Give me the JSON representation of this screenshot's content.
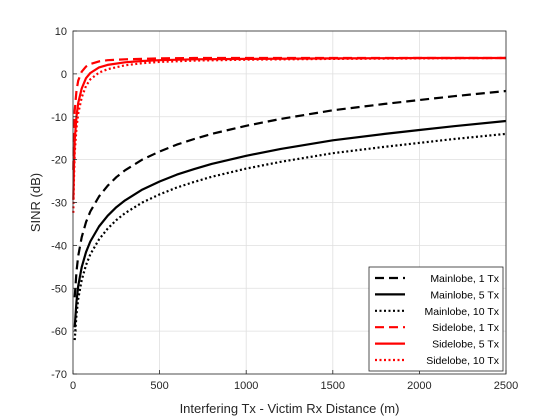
{
  "chart_data": {
    "type": "line",
    "title": "",
    "xlabel": "Interfering Tx - Victim Rx Distance (m)",
    "ylabel": "SINR (dB)",
    "xlim": [
      0,
      2500
    ],
    "ylim": [
      -70,
      10
    ],
    "xticks": [
      0,
      500,
      1000,
      1500,
      2000,
      2500
    ],
    "yticks": [
      -70,
      -60,
      -50,
      -40,
      -30,
      -20,
      -10,
      0,
      10
    ],
    "grid": true,
    "legend_position": "bottom-right",
    "series": [
      {
        "name": "Mainlobe, 1 Tx",
        "color": "#000000",
        "style": "dashed",
        "x": [
          10,
          20,
          30,
          50,
          75,
          100,
          150,
          200,
          250,
          300,
          400,
          500,
          600,
          700,
          800,
          1000,
          1200,
          1500,
          1800,
          2000,
          2200,
          2500
        ],
        "y": [
          -52.1,
          -46.1,
          -42.5,
          -38.1,
          -34.6,
          -32.1,
          -28.6,
          -26.1,
          -24.1,
          -22.5,
          -20.0,
          -18.1,
          -16.5,
          -15.2,
          -14.0,
          -12.1,
          -10.5,
          -8.5,
          -7.0,
          -6.1,
          -5.2,
          -4.0
        ]
      },
      {
        "name": "Mainlobe, 5 Tx",
        "color": "#000000",
        "style": "solid",
        "x": [
          10,
          20,
          30,
          50,
          75,
          100,
          150,
          200,
          250,
          300,
          400,
          500,
          600,
          700,
          800,
          1000,
          1200,
          1500,
          1800,
          2000,
          2200,
          2500
        ],
        "y": [
          -59.1,
          -53.1,
          -49.5,
          -45.1,
          -41.6,
          -39.1,
          -35.6,
          -33.1,
          -31.1,
          -29.5,
          -27.0,
          -25.1,
          -23.5,
          -22.2,
          -21.0,
          -19.1,
          -17.5,
          -15.5,
          -14.0,
          -13.1,
          -12.2,
          -11.0
        ]
      },
      {
        "name": "Mainlobe, 10 Tx",
        "color": "#000000",
        "style": "dotted",
        "x": [
          10,
          20,
          30,
          50,
          75,
          100,
          150,
          200,
          250,
          300,
          400,
          500,
          600,
          700,
          800,
          1000,
          1200,
          1500,
          1800,
          2000,
          2200,
          2500
        ],
        "y": [
          -62.1,
          -56.1,
          -52.5,
          -48.1,
          -44.6,
          -42.1,
          -38.6,
          -36.1,
          -34.1,
          -32.5,
          -30.0,
          -28.1,
          -26.5,
          -25.2,
          -24.0,
          -22.1,
          -20.5,
          -18.5,
          -17.0,
          -16.1,
          -15.2,
          -14.0
        ]
      },
      {
        "name": "Sidelobe, 1 Tx",
        "color": "#ff0000",
        "style": "dashed",
        "x": [
          2,
          5,
          10,
          20,
          30,
          50,
          75,
          100,
          150,
          200,
          300,
          400,
          500,
          700,
          1000,
          1500,
          2000,
          2500
        ],
        "y": [
          -22.4,
          -15.0,
          -8.6,
          -3.9,
          -1.6,
          0.5,
          1.7,
          2.3,
          2.9,
          3.2,
          3.4,
          3.5,
          3.6,
          3.7,
          3.7,
          3.7,
          3.7,
          3.7
        ]
      },
      {
        "name": "Sidelobe, 5 Tx",
        "color": "#ff0000",
        "style": "solid",
        "x": [
          2,
          5,
          10,
          20,
          30,
          50,
          75,
          100,
          150,
          200,
          300,
          400,
          500,
          700,
          1000,
          1500,
          2000,
          2500
        ],
        "y": [
          -29.4,
          -22.0,
          -15.5,
          -9.9,
          -6.8,
          -3.4,
          -1.0,
          0.2,
          1.5,
          2.1,
          2.7,
          3.0,
          3.2,
          3.4,
          3.5,
          3.6,
          3.7,
          3.7
        ]
      },
      {
        "name": "Sidelobe, 10 Tx",
        "color": "#ff0000",
        "style": "dotted",
        "x": [
          2,
          5,
          10,
          20,
          30,
          50,
          75,
          100,
          150,
          200,
          300,
          400,
          500,
          700,
          1000,
          1500,
          2000,
          2500
        ],
        "y": [
          -32.4,
          -25.0,
          -18.5,
          -12.6,
          -9.3,
          -5.5,
          -2.8,
          -1.3,
          0.3,
          1.1,
          2.0,
          2.5,
          2.8,
          3.1,
          3.3,
          3.5,
          3.6,
          3.7
        ]
      }
    ]
  }
}
